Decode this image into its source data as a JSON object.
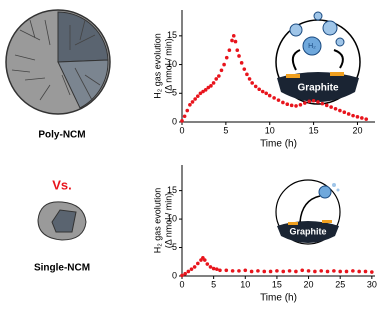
{
  "panels": {
    "poly_label": "Poly-NCM",
    "vs_label": "Vs.",
    "single_label": "Single-NCM"
  },
  "insets": {
    "top_text": "Graphite",
    "top_bubble": "H₂",
    "bottom_text": "Graphite"
  },
  "chart_data": [
    {
      "type": "scatter",
      "color": "#e8141c",
      "xlabel": "Time (h)",
      "ylabel": [
        "H₂ gas evolution",
        "(Δ nmol / min)"
      ],
      "xlim": [
        0,
        22
      ],
      "ylim": [
        0,
        19.5
      ],
      "xticks": [
        0,
        5,
        10,
        15,
        20
      ],
      "yticks": [
        0,
        5,
        10,
        15
      ],
      "x": [
        0,
        0.3,
        0.6,
        0.9,
        1.2,
        1.5,
        1.8,
        2.1,
        2.4,
        2.7,
        3,
        3.3,
        3.6,
        3.9,
        4.2,
        4.5,
        4.8,
        5.1,
        5.4,
        5.7,
        5.9,
        6.1,
        6.3,
        6.5,
        6.8,
        7.1,
        7.4,
        7.7,
        8,
        8.4,
        8.8,
        9.2,
        9.6,
        10,
        10.5,
        11,
        11.5,
        12,
        12.5,
        13,
        13.5,
        14,
        14.5,
        15,
        15.5,
        16,
        16.5,
        17,
        17.5,
        18,
        18.5,
        19,
        19.5,
        20,
        20.5,
        21
      ],
      "y": [
        0.2,
        1,
        2,
        3,
        3.5,
        4,
        4.5,
        5,
        5.3,
        5.6,
        6,
        6.3,
        6.8,
        7.5,
        8,
        9,
        10,
        11.2,
        12.5,
        14.2,
        15,
        14,
        12.5,
        11.5,
        10.3,
        9.2,
        8.3,
        7.5,
        6.8,
        6.2,
        5.7,
        5.3,
        5,
        4.6,
        4.2,
        3.8,
        3.4,
        3.1,
        2.9,
        2.8,
        3,
        3.3,
        3.6,
        3.7,
        3.5,
        3.2,
        2.9,
        2.6,
        2.3,
        2,
        1.7,
        1.4,
        1.1,
        0.9,
        0.7,
        0.5
      ]
    },
    {
      "type": "scatter",
      "color": "#e8141c",
      "xlabel": "Time (h)",
      "ylabel": [
        "H₂ gas evolution",
        "(Δ nmol / min)"
      ],
      "xlim": [
        0,
        30.5
      ],
      "ylim": [
        0,
        19.5
      ],
      "xticks": [
        0,
        5,
        10,
        15,
        20,
        25,
        30
      ],
      "yticks": [
        0,
        5,
        10,
        15
      ],
      "x": [
        0,
        0.5,
        1,
        1.5,
        2,
        2.5,
        3,
        3.3,
        3.6,
        4,
        4.5,
        5,
        5.5,
        6,
        7,
        8,
        9,
        10,
        11,
        12,
        13,
        14,
        15,
        16,
        17,
        18,
        19,
        20,
        21,
        22,
        23,
        24,
        25,
        26,
        27,
        28,
        29,
        30
      ],
      "y": [
        0.1,
        0.4,
        0.8,
        1.2,
        1.6,
        2.2,
        2.8,
        3.2,
        2.8,
        2.1,
        1.6,
        1.3,
        1.2,
        1,
        1,
        0.9,
        0.9,
        1,
        0.8,
        0.9,
        0.8,
        0.8,
        0.9,
        0.8,
        0.9,
        0.8,
        1,
        0.9,
        0.8,
        0.9,
        0.8,
        0.9,
        0.8,
        0.8,
        0.9,
        0.8,
        0.8,
        0.7
      ]
    }
  ]
}
